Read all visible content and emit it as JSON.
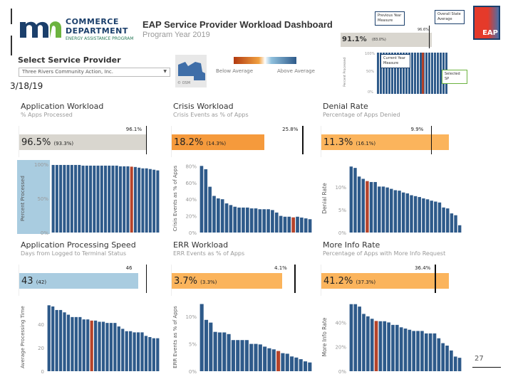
{
  "header": {
    "logo_line1": "COMMERCE",
    "logo_line2": "DEPARTMENT",
    "logo_sub": "ENERGY ASSISTANCE PROGRAM",
    "title": "EAP Service Provider Workload Dashboard",
    "subtitle": "Program Year 2019"
  },
  "selector": {
    "label": "Select Service Provider",
    "value": "Three Rivers Community Action, Inc."
  },
  "date": "3/18/19",
  "map": {
    "credit": "© OSM"
  },
  "legend": {
    "below": "Below Average",
    "above": "Above Average"
  },
  "inset": {
    "kpi_value": "91.1%",
    "kpi_prev": "(83.0%)",
    "kpi_avg": "96.6%",
    "axis_label": "Percent Processed",
    "ticks": [
      "100%",
      "50%",
      "0%"
    ],
    "callouts": {
      "prev": "Previous Year Measure",
      "state": "Overall State Average",
      "current": "Current Year Measure",
      "selected": "Selected SP"
    }
  },
  "logo_eap": "EAP",
  "page_number": "27",
  "colors": {
    "bar": "#2e5a8a",
    "selected": "#b5432a",
    "gray": "#d9d6cf",
    "orange": "#f59a3c",
    "lightorange": "#fbb45c",
    "lightblue": "#a9cce0"
  },
  "chart_data": [
    {
      "type": "bar",
      "title": "Application Workload",
      "subtitle": "% Apps Processed",
      "kpi": "96.5%",
      "kpi_prev": "(93.3%)",
      "state_avg": "96.1%",
      "kpi_fill": 0.965,
      "avg_pos": 0.961,
      "kpi_color": "gray",
      "ylabel": "Percent Processed",
      "yticks": [
        "100%",
        "50%",
        "0%"
      ],
      "ytick_vals": [
        100,
        50,
        0
      ],
      "ylim": [
        0,
        100
      ],
      "selected_index": 21,
      "highlight_axis": true,
      "values": [
        99,
        99,
        99,
        99,
        99,
        99,
        99,
        99,
        98,
        98,
        98,
        98,
        98,
        98,
        98,
        98,
        98,
        98,
        97,
        97,
        97,
        96.5,
        96,
        95,
        94,
        94,
        93,
        92,
        91
      ]
    },
    {
      "type": "bar",
      "title": "Crisis Workload",
      "subtitle": "Crisis Events as % of Apps",
      "kpi": "18.2%",
      "kpi_prev": "(14.3%)",
      "state_avg": "25.8%",
      "kpi_fill": 0.7,
      "avg_pos": 0.99,
      "kpi_color": "orange",
      "ylabel": "Crisis Events as % of Apps",
      "yticks": [
        "80%",
        "60%",
        "40%",
        "20%",
        "0%"
      ],
      "ytick_vals": [
        80,
        60,
        40,
        20,
        0
      ],
      "ylim": [
        0,
        82
      ],
      "selected_index": 22,
      "values": [
        80,
        76,
        55,
        44,
        41,
        40,
        35,
        33,
        31,
        30,
        30,
        30,
        29,
        29,
        28,
        28,
        28,
        27,
        24,
        20,
        19,
        19,
        18.2,
        19,
        18,
        17,
        16
      ]
    },
    {
      "type": "bar",
      "title": "Denial Rate",
      "subtitle": "Percentage of Apps Denied",
      "kpi": "11.3%",
      "kpi_prev": "(16.1%)",
      "state_avg": "9.9%",
      "kpi_fill": 0.97,
      "avg_pos": 0.83,
      "kpi_color": "lightorange",
      "ylabel": "Denial Rate",
      "yticks": [
        "10%",
        "5%",
        "0%"
      ],
      "ytick_vals": [
        10,
        5,
        0
      ],
      "ylim": [
        0,
        15
      ],
      "selected_index": 4,
      "values": [
        14.5,
        14.2,
        12.3,
        11.8,
        11.3,
        11.1,
        11.1,
        10.1,
        10.1,
        9.9,
        9.6,
        9.3,
        9.2,
        8.8,
        8.6,
        8.2,
        8.0,
        7.8,
        7.5,
        7.3,
        7.0,
        6.8,
        6.6,
        5.5,
        5.3,
        4.2,
        3.8,
        1.6
      ]
    },
    {
      "type": "bar",
      "title": "Application Processing Speed",
      "subtitle": "Days from Logged to Terminal Status",
      "kpi": "43",
      "kpi_prev": "(42)",
      "state_avg": "46",
      "kpi_fill": 0.9,
      "avg_pos": 0.96,
      "kpi_color": "lightblue",
      "ylabel": "Average Processing Time",
      "yticks": [
        "40",
        "20",
        "0"
      ],
      "ytick_vals": [
        40,
        20,
        0
      ],
      "ylim": [
        0,
        58
      ],
      "selected_index": 11,
      "values": [
        56,
        55,
        52,
        52,
        50,
        48,
        46,
        46,
        46,
        44,
        44,
        43,
        43,
        42,
        42,
        41,
        41,
        41,
        38,
        36,
        34,
        34,
        33,
        33,
        33,
        30,
        29,
        28,
        28
      ]
    },
    {
      "type": "bar",
      "title": "ERR Workload",
      "subtitle": "ERR Events as % of Apps",
      "kpi": "3.7%",
      "kpi_prev": "(3.3%)",
      "state_avg": "4.1%",
      "kpi_fill": 0.84,
      "avg_pos": 0.93,
      "kpi_color": "lightorange",
      "ylabel": "ERR Events as % of Apps",
      "yticks": [
        "10%",
        "5%",
        "0%"
      ],
      "ytick_vals": [
        10,
        5,
        0
      ],
      "ylim": [
        0,
        12.5
      ],
      "selected_index": 17,
      "values": [
        12.3,
        9.4,
        8.9,
        7.2,
        7.1,
        7.1,
        6.8,
        5.7,
        5.7,
        5.7,
        5.7,
        5.0,
        5.0,
        4.9,
        4.5,
        4.2,
        4.0,
        3.7,
        3.3,
        3.2,
        2.7,
        2.5,
        2.2,
        1.8,
        1.6
      ]
    },
    {
      "type": "bar",
      "title": "More Info Rate",
      "subtitle": "Percentage of Apps with More Info Request",
      "kpi": "41.2%",
      "kpi_prev": "(37.3%)",
      "state_avg": "36.4%",
      "kpi_fill": 0.97,
      "avg_pos": 0.86,
      "kpi_color": "lightorange",
      "ylabel": "More Info Rate",
      "yticks": [
        "40%",
        "20%",
        "0%"
      ],
      "ytick_vals": [
        40,
        20,
        0
      ],
      "ylim": [
        0,
        56
      ],
      "selected_index": 6,
      "values": [
        55,
        55,
        53,
        47,
        45,
        43,
        41.2,
        41,
        41,
        40,
        38,
        38,
        36,
        35,
        34,
        33,
        33,
        33,
        31,
        31,
        31,
        27,
        23,
        21,
        17,
        12,
        11
      ]
    }
  ]
}
